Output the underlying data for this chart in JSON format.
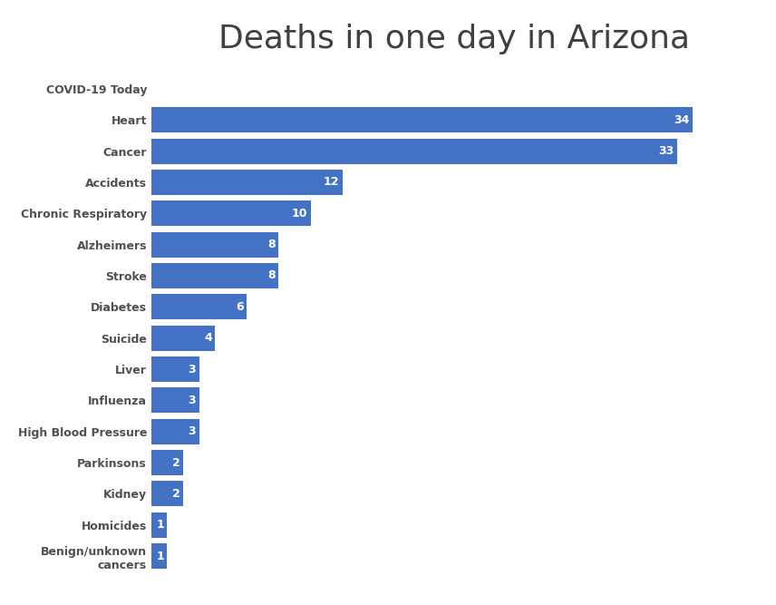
{
  "title": "Deaths in one day in Arizona",
  "categories": [
    "COVID-19 Today",
    "Heart",
    "Cancer",
    "Accidents",
    "Chronic Respiratory",
    "Alzheimers",
    "Stroke",
    "Diabetes",
    "Suicide",
    "Liver",
    "Influenza",
    "High Blood Pressure",
    "Parkinsons",
    "Kidney",
    "Homicides",
    "Benign/unknown\ncancers"
  ],
  "values": [
    0,
    34,
    33,
    12,
    10,
    8,
    8,
    6,
    4,
    3,
    3,
    3,
    2,
    2,
    1,
    1
  ],
  "bar_color": "#4472C4",
  "covid_bar_color": "#c8c8c8",
  "covid_bar_height": 0.08,
  "label_color": "#ffffff",
  "title_color": "#404040",
  "title_fontsize": 26,
  "label_fontsize": 9,
  "category_fontsize": 9,
  "background_color": "#ffffff",
  "xlim": [
    0,
    38
  ],
  "bar_height": 0.82
}
